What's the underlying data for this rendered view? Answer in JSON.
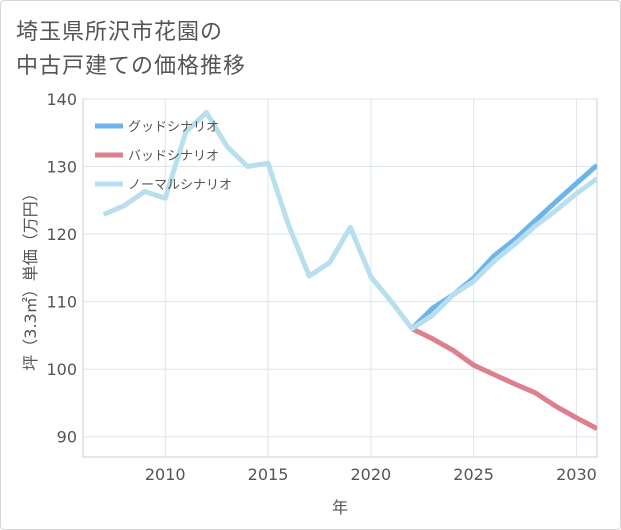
{
  "title": {
    "line1": "埼玉県所沢市花園の",
    "line2": "中古戸建ての価格推移"
  },
  "chart_data": {
    "type": "line",
    "title": "埼玉県所沢市花園の中古戸建ての価格推移",
    "xlabel": "年",
    "ylabel": "坪（3.3㎡）単価（万円）",
    "xlim": [
      2006,
      2031
    ],
    "ylim": [
      87,
      140
    ],
    "xticks": [
      2010,
      2015,
      2020,
      2025,
      2030
    ],
    "yticks": [
      90,
      100,
      110,
      120,
      130,
      140
    ],
    "grid": true,
    "legend_position": "top-left",
    "series": [
      {
        "name": "グッドシナリオ",
        "color": "#6cb4ec",
        "x": [
          2022,
          2023,
          2024,
          2025,
          2026,
          2027,
          2028,
          2029,
          2030,
          2031
        ],
        "y": [
          106.0,
          109.0,
          111.0,
          113.5,
          116.8,
          119.2,
          122.0,
          124.8,
          127.5,
          130.2
        ]
      },
      {
        "name": "バッドシナリオ",
        "color": "#dd7f8c",
        "x": [
          2022,
          2023,
          2024,
          2025,
          2026,
          2027,
          2028,
          2029,
          2030,
          2031
        ],
        "y": [
          106.0,
          104.5,
          102.8,
          100.6,
          99.2,
          97.8,
          96.5,
          94.5,
          92.8,
          91.2
        ]
      },
      {
        "name": "ノーマルシナリオ",
        "color": "#b8dfee",
        "x": [
          2007,
          2008,
          2009,
          2010,
          2011,
          2012,
          2013,
          2014,
          2015,
          2016,
          2017,
          2018,
          2019,
          2020,
          2021,
          2022,
          2023,
          2024,
          2025,
          2026,
          2027,
          2028,
          2029,
          2030,
          2031
        ],
        "y": [
          122.9,
          124.2,
          126.3,
          125.3,
          135.1,
          138.0,
          133.0,
          130.0,
          130.5,
          121.3,
          113.8,
          115.8,
          121.0,
          113.7,
          110.0,
          106.0,
          108.0,
          111.0,
          113.0,
          116.0,
          118.5,
          121.2,
          123.5,
          126.0,
          128.2
        ]
      }
    ]
  }
}
